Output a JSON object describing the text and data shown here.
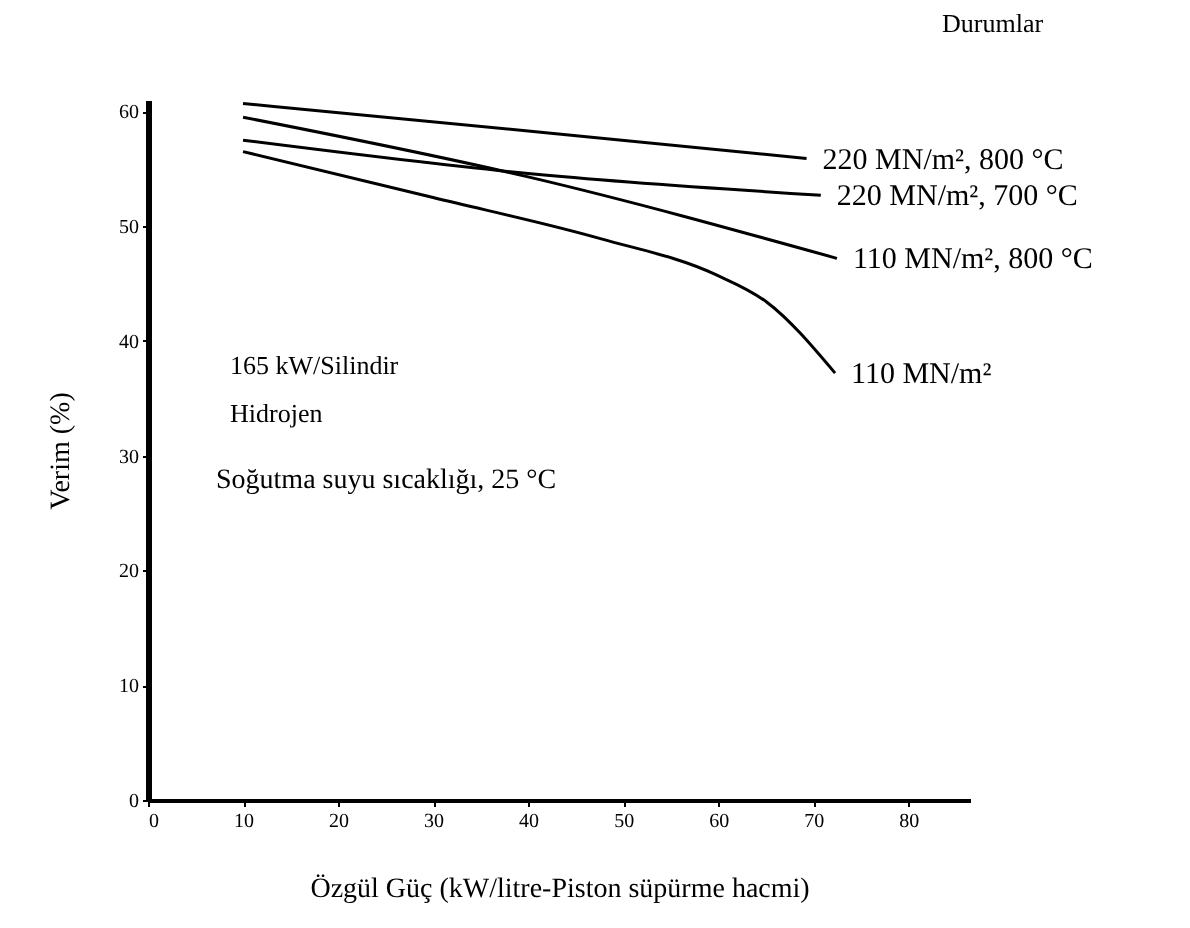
{
  "chart_data": {
    "type": "line",
    "xlabel": "Özgül Güç  (kW/litre-Piston süpürme hacmi)",
    "ylabel": "Verim   (%)",
    "legend_title": "Durumlar",
    "xlim": [
      0,
      86.5
    ],
    "ylim": [
      0,
      61
    ],
    "xticks": [
      0,
      10,
      20,
      30,
      40,
      50,
      60,
      70,
      80
    ],
    "yticks": [
      0,
      10,
      20,
      30,
      40,
      50,
      60
    ],
    "grid": false,
    "legend": false,
    "marker": "none",
    "line_style": "solid",
    "annotations": [
      "165 kW/Silindir",
      "Hidrojen",
      "Soğutma suyu sıcaklığı, 25 °C"
    ],
    "series": [
      {
        "name": "220 MN/m², 800 °C",
        "color": "#000000",
        "x": [
          10,
          40,
          69.3
        ],
        "values": [
          60.7,
          58.3,
          55.9
        ]
      },
      {
        "name": "220 MN/m², 700 °C",
        "color": "#000000",
        "x": [
          10,
          40,
          70.8
        ],
        "values": [
          57.5,
          54.6,
          52.7
        ]
      },
      {
        "name": "110 MN/m², 800 °C",
        "color": "#000000",
        "x": [
          10,
          40,
          72.5
        ],
        "values": [
          59.5,
          54.3,
          47.2
        ]
      },
      {
        "name": "110 MN/m²",
        "color": "#000000",
        "x": [
          10,
          30,
          47.7,
          59.7,
          65.1,
          72.3
        ],
        "values": [
          56.5,
          52.5,
          48.9,
          45.8,
          43.4,
          37.2
        ]
      }
    ]
  }
}
